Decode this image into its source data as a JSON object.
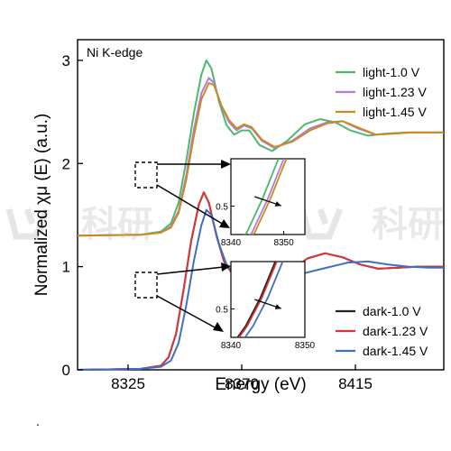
{
  "chart_data": [
    {
      "type": "line",
      "annotation": "Ni K-edge",
      "xlabel": "Energy (eV)",
      "ylabel": "Normalized χμ (E) (a.u.)",
      "xlim": [
        8305,
        8450
      ],
      "ylim": [
        0,
        3.2
      ],
      "xticks": [
        "8325",
        "8370",
        "8415"
      ],
      "yticks": [
        "0",
        "1",
        "2",
        "3"
      ],
      "legend_position": "upper-right and lower-right",
      "series": [
        {
          "name": "light-1.0 V",
          "color": "#4cb86c",
          "offset": 1.3,
          "points": [
            [
              8305,
              0
            ],
            [
              8330,
              0.01
            ],
            [
              8338,
              0.04
            ],
            [
              8342,
              0.12
            ],
            [
              8345,
              0.32
            ],
            [
              8348,
              0.72
            ],
            [
              8351,
              1.18
            ],
            [
              8354,
              1.56
            ],
            [
              8356,
              1.7
            ],
            [
              8358,
              1.62
            ],
            [
              8361,
              1.3
            ],
            [
              8364,
              1.07
            ],
            [
              8367,
              0.98
            ],
            [
              8370,
              1.02
            ],
            [
              8373,
              1.02
            ],
            [
              8377,
              0.88
            ],
            [
              8382,
              0.82
            ],
            [
              8388,
              0.92
            ],
            [
              8395,
              1.08
            ],
            [
              8401,
              1.13
            ],
            [
              8407,
              1.1
            ],
            [
              8413,
              1.02
            ],
            [
              8420,
              0.97
            ],
            [
              8427,
              0.99
            ],
            [
              8435,
              1.0
            ],
            [
              8450,
              1.0
            ]
          ]
        },
        {
          "name": "light-1.23 V",
          "color": "#b07ce0",
          "offset": 1.3,
          "points": [
            [
              8305,
              0
            ],
            [
              8330,
              0.01
            ],
            [
              8338,
              0.03
            ],
            [
              8342,
              0.09
            ],
            [
              8345,
              0.24
            ],
            [
              8348,
              0.58
            ],
            [
              8351,
              1.02
            ],
            [
              8354,
              1.38
            ],
            [
              8357,
              1.53
            ],
            [
              8359,
              1.48
            ],
            [
              8362,
              1.25
            ],
            [
              8365,
              1.1
            ],
            [
              8368,
              1.02
            ],
            [
              8371,
              1.07
            ],
            [
              8374,
              1.04
            ],
            [
              8378,
              0.92
            ],
            [
              8383,
              0.85
            ],
            [
              8390,
              0.92
            ],
            [
              8397,
              1.04
            ],
            [
              8404,
              1.1
            ],
            [
              8410,
              1.11
            ],
            [
              8416,
              1.04
            ],
            [
              8423,
              0.98
            ],
            [
              8430,
              0.99
            ],
            [
              8437,
              1.0
            ],
            [
              8450,
              1.0
            ]
          ]
        },
        {
          "name": "light-1.45 V",
          "color": "#c98b1e",
          "offset": 1.3,
          "points": [
            [
              8305,
              0
            ],
            [
              8330,
              0.01
            ],
            [
              8338,
              0.03
            ],
            [
              8342,
              0.08
            ],
            [
              8345,
              0.22
            ],
            [
              8348,
              0.54
            ],
            [
              8351,
              0.96
            ],
            [
              8354,
              1.32
            ],
            [
              8357,
              1.48
            ],
            [
              8359,
              1.46
            ],
            [
              8362,
              1.26
            ],
            [
              8365,
              1.12
            ],
            [
              8368,
              1.04
            ],
            [
              8371,
              1.08
            ],
            [
              8374,
              1.05
            ],
            [
              8378,
              0.93
            ],
            [
              8383,
              0.86
            ],
            [
              8390,
              0.91
            ],
            [
              8397,
              1.02
            ],
            [
              8404,
              1.09
            ],
            [
              8410,
              1.11
            ],
            [
              8416,
              1.05
            ],
            [
              8423,
              0.98
            ],
            [
              8430,
              0.99
            ],
            [
              8437,
              1.0
            ],
            [
              8450,
              1.0
            ]
          ]
        },
        {
          "name": "dark-1.0 V",
          "color": "#222222",
          "offset": 0,
          "points": [
            [
              8305,
              0
            ],
            [
              8330,
              0.01
            ],
            [
              8338,
              0.04
            ],
            [
              8341,
              0.12
            ],
            [
              8344,
              0.35
            ],
            [
              8347,
              0.78
            ],
            [
              8350,
              1.25
            ],
            [
              8353,
              1.6
            ],
            [
              8355,
              1.72
            ],
            [
              8357,
              1.62
            ],
            [
              8360,
              1.3
            ],
            [
              8363,
              1.05
            ],
            [
              8366,
              0.94
            ],
            [
              8369,
              0.95
            ],
            [
              8372,
              0.99
            ],
            [
              8376,
              0.9
            ],
            [
              8381,
              0.83
            ],
            [
              8388,
              0.93
            ],
            [
              8396,
              1.08
            ],
            [
              8403,
              1.13
            ],
            [
              8410,
              1.09
            ],
            [
              8417,
              1.02
            ],
            [
              8424,
              0.98
            ],
            [
              8432,
              0.99
            ],
            [
              8440,
              1.0
            ],
            [
              8450,
              1.0
            ]
          ]
        },
        {
          "name": "dark-1.23 V",
          "color": "#d9343a",
          "offset": 0,
          "points": [
            [
              8305,
              0
            ],
            [
              8330,
              0.01
            ],
            [
              8338,
              0.04
            ],
            [
              8341,
              0.12
            ],
            [
              8344,
              0.35
            ],
            [
              8347,
              0.78
            ],
            [
              8350,
              1.25
            ],
            [
              8353,
              1.6
            ],
            [
              8355,
              1.72
            ],
            [
              8357,
              1.62
            ],
            [
              8360,
              1.3
            ],
            [
              8363,
              1.05
            ],
            [
              8366,
              0.94
            ],
            [
              8369,
              0.95
            ],
            [
              8372,
              0.99
            ],
            [
              8376,
              0.9
            ],
            [
              8381,
              0.83
            ],
            [
              8388,
              0.93
            ],
            [
              8396,
              1.08
            ],
            [
              8403,
              1.13
            ],
            [
              8410,
              1.09
            ],
            [
              8417,
              1.02
            ],
            [
              8424,
              0.98
            ],
            [
              8432,
              0.99
            ],
            [
              8440,
              1.0
            ],
            [
              8450,
              1.0
            ]
          ]
        },
        {
          "name": "dark-1.45 V",
          "color": "#3e6fc4",
          "offset": 0,
          "points": [
            [
              8305,
              0
            ],
            [
              8330,
              0.01
            ],
            [
              8338,
              0.03
            ],
            [
              8342,
              0.09
            ],
            [
              8345,
              0.26
            ],
            [
              8348,
              0.62
            ],
            [
              8351,
              1.05
            ],
            [
              8354,
              1.4
            ],
            [
              8356,
              1.55
            ],
            [
              8358,
              1.5
            ],
            [
              8361,
              1.22
            ],
            [
              8364,
              1.02
            ],
            [
              8367,
              0.93
            ],
            [
              8370,
              0.94
            ],
            [
              8373,
              0.97
            ],
            [
              8377,
              0.91
            ],
            [
              8383,
              0.88
            ],
            [
              8392,
              0.92
            ],
            [
              8402,
              0.98
            ],
            [
              8412,
              1.04
            ],
            [
              8420,
              1.05
            ],
            [
              8428,
              1.02
            ],
            [
              8436,
              1.0
            ],
            [
              8444,
              0.99
            ],
            [
              8450,
              0.99
            ]
          ]
        }
      ]
    },
    {
      "type": "line",
      "position": "upper inset",
      "xlim": [
        8340,
        8354
      ],
      "ylim": [
        0.2,
        1.0
      ],
      "xticks": [
        "8340",
        "8350"
      ],
      "yticks": [
        "0.5"
      ],
      "series": [
        {
          "name": "light-1.0 V",
          "color": "#4cb86c",
          "points": [
            [
              8340,
              0.05
            ],
            [
              8343,
              0.22
            ],
            [
              8346,
              0.58
            ],
            [
              8349,
              1.0
            ]
          ]
        },
        {
          "name": "light-1.23 V",
          "color": "#b07ce0",
          "points": [
            [
              8341,
              0.05
            ],
            [
              8344,
              0.22
            ],
            [
              8347,
              0.58
            ],
            [
              8350,
              1.0
            ]
          ]
        },
        {
          "name": "light-1.45 V",
          "color": "#c98b1e",
          "points": [
            [
              8341.5,
              0.05
            ],
            [
              8344.5,
              0.22
            ],
            [
              8347.5,
              0.58
            ],
            [
              8350.5,
              1.0
            ]
          ]
        }
      ]
    },
    {
      "type": "line",
      "position": "lower inset",
      "xlim": [
        8340,
        8350
      ],
      "ylim": [
        0.2,
        1.0
      ],
      "xticks": [
        "8340",
        "8350"
      ],
      "yticks": [
        "0.5"
      ],
      "series": [
        {
          "name": "dark-1.0 V",
          "color": "#222222",
          "points": [
            [
              8340,
              0.1
            ],
            [
              8342,
              0.32
            ],
            [
              8344,
              0.62
            ],
            [
              8346,
              1.0
            ]
          ]
        },
        {
          "name": "dark-1.23 V",
          "color": "#d9343a",
          "points": [
            [
              8340.2,
              0.1
            ],
            [
              8342.2,
              0.32
            ],
            [
              8344.2,
              0.62
            ],
            [
              8346.2,
              1.0
            ]
          ]
        },
        {
          "name": "dark-1.45 V",
          "color": "#3e6fc4",
          "points": [
            [
              8341,
              0.1
            ],
            [
              8343,
              0.32
            ],
            [
              8345,
              0.62
            ],
            [
              8347,
              1.0
            ]
          ]
        }
      ]
    }
  ],
  "watermark": "科研",
  "footer_mark": "."
}
